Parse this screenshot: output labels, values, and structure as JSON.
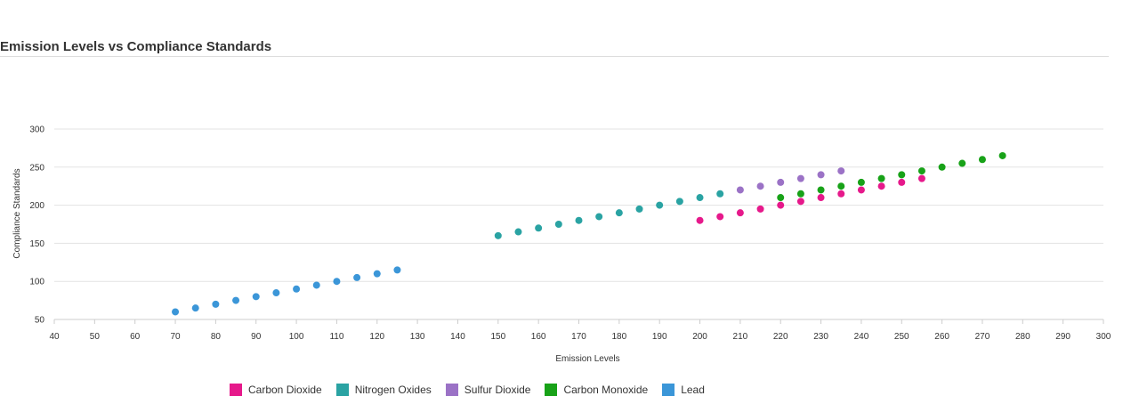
{
  "chart_data": {
    "type": "scatter",
    "title": "Emission Levels vs Compliance Standards",
    "xlabel": "Emission Levels",
    "ylabel": "Compliance Standards",
    "xlim": [
      40,
      300
    ],
    "ylim": [
      50,
      300
    ],
    "x_ticks": [
      40,
      50,
      60,
      70,
      80,
      90,
      100,
      110,
      120,
      130,
      140,
      150,
      160,
      170,
      180,
      190,
      200,
      210,
      220,
      230,
      240,
      250,
      260,
      270,
      280,
      290,
      300
    ],
    "y_ticks": [
      50,
      100,
      150,
      200,
      250,
      300
    ],
    "grid": true,
    "legend_position": "bottom",
    "series": [
      {
        "name": "Carbon Dioxide",
        "color": "#e6198b",
        "points": [
          [
            200,
            180
          ],
          [
            205,
            185
          ],
          [
            210,
            190
          ],
          [
            215,
            195
          ],
          [
            220,
            200
          ],
          [
            225,
            205
          ],
          [
            230,
            210
          ],
          [
            235,
            215
          ],
          [
            240,
            220
          ],
          [
            245,
            225
          ],
          [
            250,
            230
          ],
          [
            255,
            235
          ]
        ]
      },
      {
        "name": "Nitrogen Oxides",
        "color": "#2aa3a3",
        "points": [
          [
            150,
            160
          ],
          [
            155,
            165
          ],
          [
            160,
            170
          ],
          [
            165,
            175
          ],
          [
            170,
            180
          ],
          [
            175,
            185
          ],
          [
            180,
            190
          ],
          [
            185,
            195
          ],
          [
            190,
            200
          ],
          [
            195,
            205
          ],
          [
            200,
            210
          ],
          [
            205,
            215
          ]
        ]
      },
      {
        "name": "Sulfur Dioxide",
        "color": "#9b72c6",
        "points": [
          [
            210,
            220
          ],
          [
            215,
            225
          ],
          [
            220,
            230
          ],
          [
            225,
            235
          ],
          [
            230,
            240
          ],
          [
            235,
            245
          ]
        ]
      },
      {
        "name": "Carbon Monoxide",
        "color": "#18a218",
        "points": [
          [
            220,
            210
          ],
          [
            225,
            215
          ],
          [
            230,
            220
          ],
          [
            235,
            225
          ],
          [
            240,
            230
          ],
          [
            245,
            235
          ],
          [
            250,
            240
          ],
          [
            255,
            245
          ],
          [
            260,
            250
          ],
          [
            265,
            255
          ],
          [
            270,
            260
          ],
          [
            275,
            265
          ]
        ]
      },
      {
        "name": "Lead",
        "color": "#3b96d8",
        "points": [
          [
            70,
            60
          ],
          [
            75,
            65
          ],
          [
            80,
            70
          ],
          [
            85,
            75
          ],
          [
            90,
            80
          ],
          [
            95,
            85
          ],
          [
            100,
            90
          ],
          [
            105,
            95
          ],
          [
            110,
            100
          ],
          [
            115,
            105
          ],
          [
            120,
            110
          ],
          [
            125,
            115
          ]
        ]
      }
    ]
  }
}
